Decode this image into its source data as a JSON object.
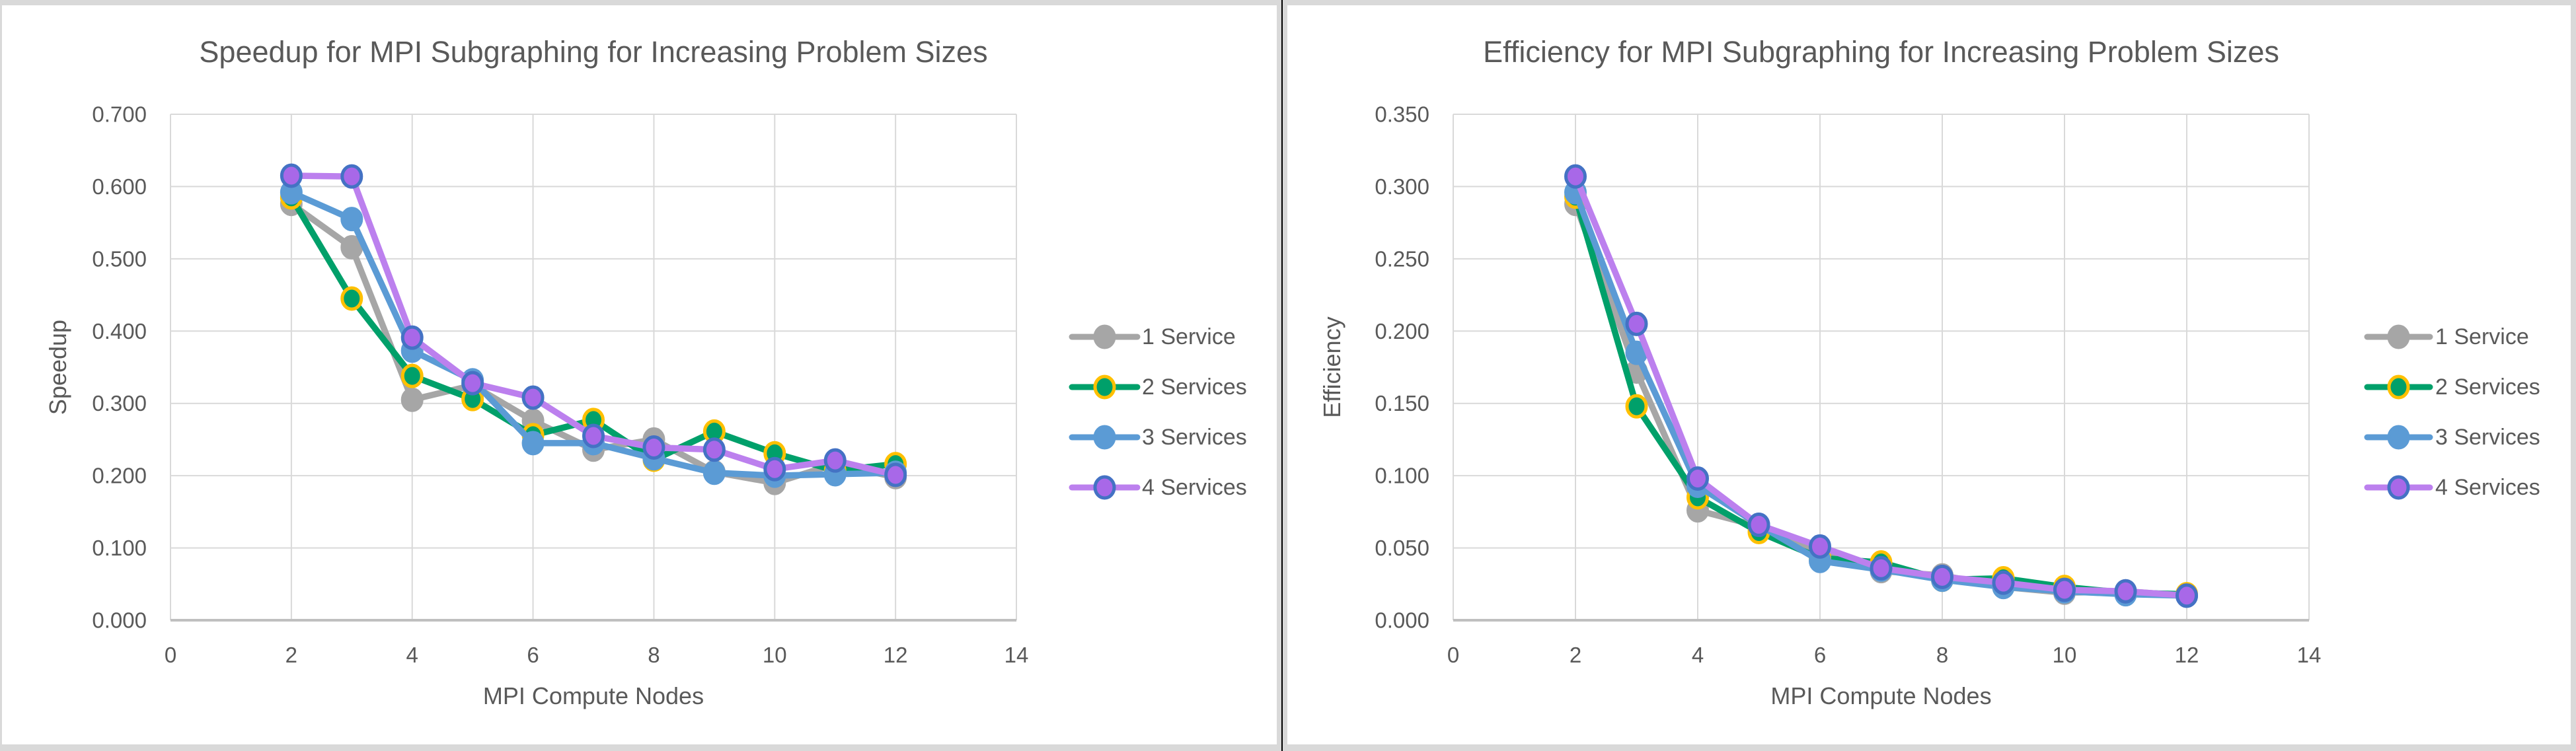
{
  "frame": {
    "background": "#ffffff",
    "border_color": "#d9d9d9",
    "divider_line_color": "#000000",
    "text_color": "#595959",
    "gridline_color": "#d9d9d9",
    "axis_line_color": "#bfbfbf"
  },
  "chart_data": [
    {
      "type": "line",
      "title": "Speedup for MPI Subgraphing for Increasing Problem Sizes",
      "xlabel": "MPI Compute Nodes",
      "ylabel": "Speedup",
      "xlim": [
        0,
        14
      ],
      "ylim": [
        0,
        0.7
      ],
      "x_ticks": [
        0,
        2,
        4,
        6,
        8,
        10,
        12,
        14
      ],
      "x_tick_labels": [
        "0",
        "2",
        "4",
        "6",
        "8",
        "10",
        "12",
        "14"
      ],
      "y_tick_step": 0.1,
      "y_tick_labels": [
        "0.000",
        "0.100",
        "0.200",
        "0.300",
        "0.400",
        "0.500",
        "0.600",
        "0.700"
      ],
      "grid": true,
      "legend_position": "right",
      "x": [
        2,
        3,
        4,
        5,
        6,
        7,
        8,
        9,
        10,
        11,
        12
      ],
      "series": [
        {
          "name": "1 Service",
          "line_color": "#a6a6a6",
          "marker_fill": "#a6a6a6",
          "marker_ring": "#a6a6a6",
          "values": [
            0.576,
            0.516,
            0.305,
            0.325,
            0.276,
            0.236,
            0.25,
            0.205,
            0.19,
            0.216,
            0.198
          ]
        },
        {
          "name": "2 Services",
          "line_color": "#00a06a",
          "marker_fill": "#00a06a",
          "marker_ring": "#ffc000",
          "values": [
            0.585,
            0.445,
            0.338,
            0.306,
            0.256,
            0.277,
            0.222,
            0.261,
            0.231,
            0.207,
            0.216
          ]
        },
        {
          "name": "3 Services",
          "line_color": "#5b9bd5",
          "marker_fill": "#5b9bd5",
          "marker_ring": "#5b9bd5",
          "values": [
            0.592,
            0.555,
            0.373,
            0.332,
            0.245,
            0.245,
            0.224,
            0.204,
            0.2,
            0.202,
            0.204
          ]
        },
        {
          "name": "4 Services",
          "line_color": "#bc80ee",
          "marker_fill": "#a868e8",
          "marker_ring": "#4472c4",
          "values": [
            0.615,
            0.614,
            0.391,
            0.328,
            0.308,
            0.255,
            0.239,
            0.236,
            0.209,
            0.221,
            0.201
          ]
        }
      ]
    },
    {
      "type": "line",
      "title": "Efficiency for MPI Subgraphing for Increasing Problem Sizes",
      "xlabel": "MPI Compute Nodes",
      "ylabel": "Efficiency",
      "xlim": [
        0,
        14
      ],
      "ylim": [
        0,
        0.35
      ],
      "x_ticks": [
        0,
        2,
        4,
        6,
        8,
        10,
        12,
        14
      ],
      "x_tick_labels": [
        "0",
        "2",
        "4",
        "6",
        "8",
        "10",
        "12",
        "14"
      ],
      "y_tick_step": 0.05,
      "y_tick_labels": [
        "0.000",
        "0.050",
        "0.100",
        "0.150",
        "0.200",
        "0.250",
        "0.300",
        "0.350"
      ],
      "grid": true,
      "legend_position": "right",
      "x": [
        2,
        3,
        4,
        5,
        6,
        7,
        8,
        9,
        10,
        11,
        12
      ],
      "series": [
        {
          "name": "1 Service",
          "line_color": "#a6a6a6",
          "marker_fill": "#a6a6a6",
          "marker_ring": "#a6a6a6",
          "values": [
            0.288,
            0.172,
            0.076,
            0.065,
            0.046,
            0.034,
            0.031,
            0.023,
            0.019,
            0.02,
            0.017
          ]
        },
        {
          "name": "2 Services",
          "line_color": "#00a06a",
          "marker_fill": "#00a06a",
          "marker_ring": "#ffc000",
          "values": [
            0.293,
            0.148,
            0.085,
            0.061,
            0.043,
            0.04,
            0.028,
            0.029,
            0.023,
            0.019,
            0.018
          ]
        },
        {
          "name": "3 Services",
          "line_color": "#5b9bd5",
          "marker_fill": "#5b9bd5",
          "marker_ring": "#5b9bd5",
          "values": [
            0.296,
            0.185,
            0.093,
            0.066,
            0.041,
            0.035,
            0.028,
            0.023,
            0.02,
            0.018,
            0.017
          ]
        },
        {
          "name": "4 Services",
          "line_color": "#bc80ee",
          "marker_fill": "#a868e8",
          "marker_ring": "#4472c4",
          "values": [
            0.307,
            0.205,
            0.098,
            0.066,
            0.051,
            0.036,
            0.03,
            0.026,
            0.021,
            0.02,
            0.017
          ]
        }
      ]
    }
  ]
}
